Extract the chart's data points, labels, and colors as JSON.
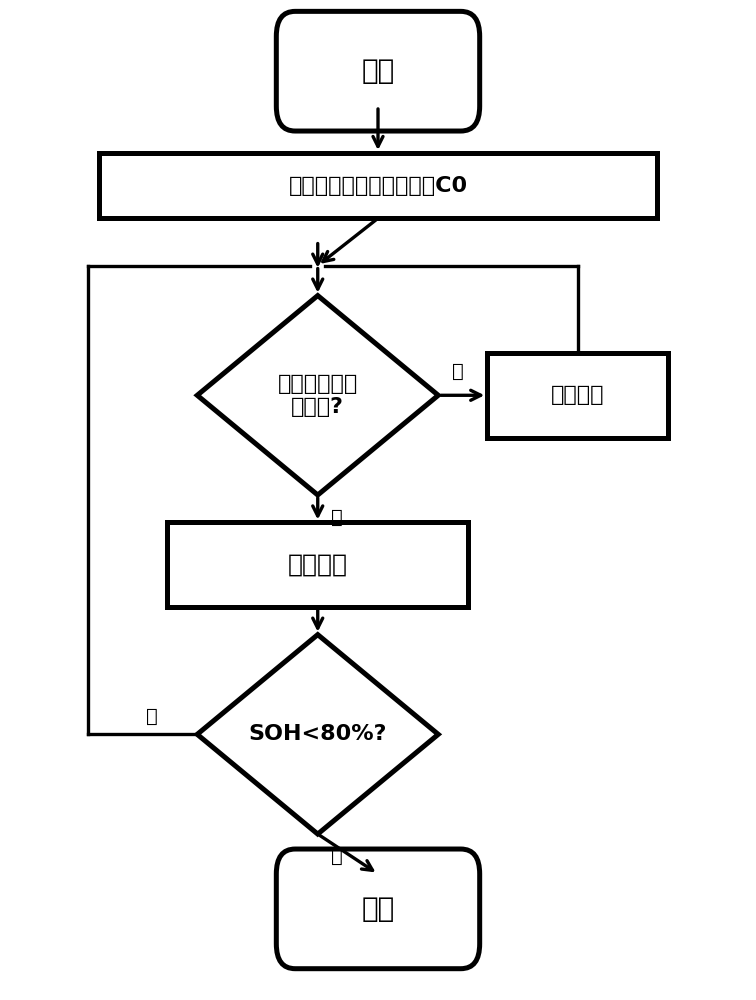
{
  "bg_color": "#ffffff",
  "line_color": "#000000",
  "line_width": 2.0,
  "start_label": "开始",
  "init_label": "确定电池的初始额定容量C0",
  "diamond1_label": "是否处于充放\n电状态?",
  "storage_label": "存储模式",
  "cycle_label": "循环模式",
  "diamond2_label": "SOH<80%?",
  "end_label": "结束",
  "yes_label": "是",
  "no_label": "否"
}
